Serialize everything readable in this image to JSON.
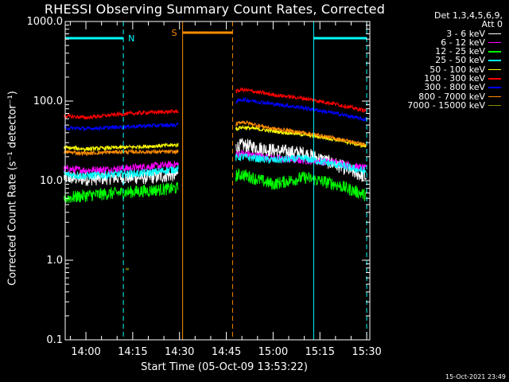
{
  "chart_data": {
    "type": "line",
    "title": "RHESSI Observing Summary Count Rates, Corrected",
    "xlabel": "Start Time (05-Oct-09 13:53:22)",
    "ylabel": "Corrected Count Rate (s⁻¹ detector⁻¹)",
    "yscale": "log",
    "ylim": [
      0.1,
      1000
    ],
    "xlim": [
      "13:53:22",
      "15:31:00"
    ],
    "x_ticks": [
      "14:00",
      "14:15",
      "14:30",
      "14:45",
      "15:00",
      "15:15",
      "15:30"
    ],
    "y_ticks": [
      "0.1",
      "1.0",
      "10.0",
      "100.0",
      "1000.0"
    ],
    "legend_header": [
      "Det 1,3,4,5,6,9,",
      "Att 0"
    ],
    "legend_placement": "right",
    "gap": [
      "14:30",
      "14:48"
    ],
    "series": [
      {
        "name": "3 - 6 keV",
        "color": "#ffffff",
        "x": [
          "13:53",
          "14:00",
          "14:10",
          "14:20",
          "14:29",
          "14:50",
          "15:00",
          "15:10",
          "15:20",
          "15:30"
        ],
        "values": [
          11,
          10.5,
          11,
          11,
          12,
          28,
          24,
          22,
          16,
          11
        ]
      },
      {
        "name": "6 - 12 keV",
        "color": "#ff00ff",
        "x": [
          "13:53",
          "14:00",
          "14:10",
          "14:20",
          "14:29",
          "14:50",
          "15:00",
          "15:10",
          "15:20",
          "15:30"
        ],
        "values": [
          14,
          13.5,
          14,
          15,
          16,
          22,
          19,
          18,
          17,
          14
        ]
      },
      {
        "name": "12 - 25 keV",
        "color": "#00ff00",
        "x": [
          "13:53",
          "14:00",
          "14:10",
          "14:20",
          "14:29",
          "14:50",
          "15:00",
          "15:10",
          "15:20",
          "15:30"
        ],
        "values": [
          6,
          6.5,
          7,
          7.5,
          8,
          12,
          9,
          11,
          9,
          6.5
        ]
      },
      {
        "name": "25 - 50 keV",
        "color": "#00ffff",
        "x": [
          "13:53",
          "14:00",
          "14:10",
          "14:20",
          "14:29",
          "14:50",
          "15:00",
          "15:10",
          "15:20",
          "15:30"
        ],
        "values": [
          12,
          11.5,
          12,
          12.5,
          14,
          20,
          18,
          19,
          16,
          13
        ]
      },
      {
        "name": "50 - 100 keV",
        "color": "#ffff00",
        "x": [
          "13:53",
          "14:00",
          "14:10",
          "14:20",
          "14:29",
          "14:50",
          "15:00",
          "15:10",
          "15:20",
          "15:30"
        ],
        "values": [
          26,
          25,
          26,
          27,
          28,
          47,
          42,
          38,
          33,
          27
        ]
      },
      {
        "name": "100 - 300 keV",
        "color": "#ff0000",
        "x": [
          "13:53",
          "14:00",
          "14:10",
          "14:20",
          "14:29",
          "14:50",
          "15:00",
          "15:10",
          "15:20",
          "15:30"
        ],
        "values": [
          65,
          62,
          68,
          72,
          74,
          140,
          120,
          108,
          92,
          75
        ]
      },
      {
        "name": "300 - 800 keV",
        "color": "#0000ff",
        "x": [
          "13:53",
          "14:00",
          "14:10",
          "14:20",
          "14:29",
          "14:50",
          "15:00",
          "15:10",
          "15:20",
          "15:30"
        ],
        "values": [
          46,
          45,
          47,
          49,
          50,
          105,
          92,
          82,
          70,
          58
        ]
      },
      {
        "name": "800 - 7000 keV",
        "color": "#ff8c00",
        "x": [
          "13:53",
          "14:00",
          "14:10",
          "14:20",
          "14:29",
          "14:50",
          "15:00",
          "15:10",
          "15:20",
          "15:30"
        ],
        "values": [
          23,
          22,
          23,
          23,
          23,
          55,
          45,
          40,
          34,
          28
        ]
      },
      {
        "name": "7000 - 15000 keV",
        "color": "#8b8b00",
        "x": [
          "14:13",
          "14:13"
        ],
        "values": [
          0.75,
          0.8
        ]
      }
    ],
    "annotations": [
      {
        "label": "N",
        "color": "#00ffff"
      },
      {
        "label": "S",
        "color": "#ff8c00"
      }
    ],
    "bars": [
      {
        "label": "night",
        "color": "#00ffff",
        "from": "13:53:22",
        "to": "14:12:00"
      },
      {
        "label": "saa",
        "color": "#ff8c00",
        "from": "14:31:00",
        "to": "14:47:00"
      },
      {
        "label": "night",
        "color": "#00ffff",
        "from": "15:13:00",
        "to": "15:30:00"
      }
    ]
  },
  "footer": "15-Oct-2021 23:49"
}
